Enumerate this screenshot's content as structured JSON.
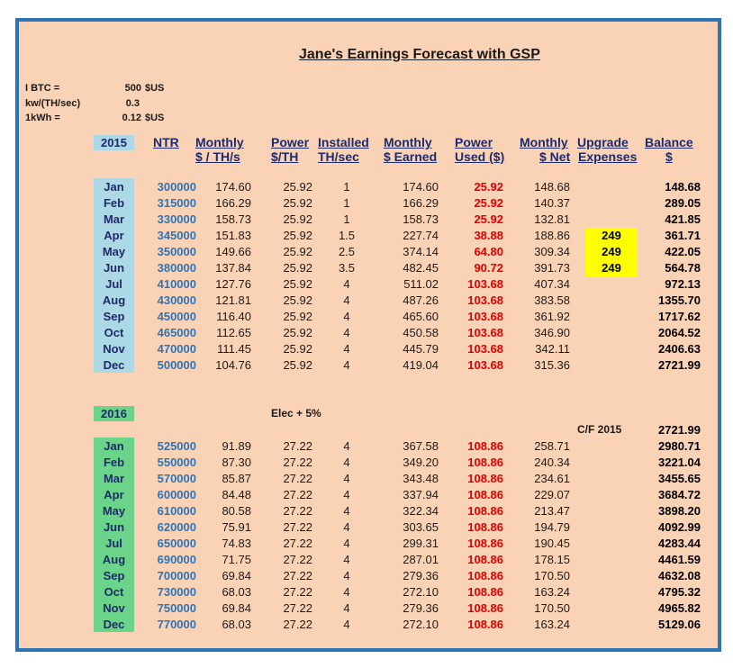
{
  "title": "Jane's Earnings Forecast with GSP",
  "params": [
    {
      "label": "I BTC =",
      "value": "500",
      "unit": "$US"
    },
    {
      "label": "kw/(TH/sec)",
      "value": "0.3",
      "unit": ""
    },
    {
      "label": "1kWh =",
      "value": "0.12",
      "unit": "$US"
    }
  ],
  "headers": {
    "ntr": "NTR",
    "monthly1": "Monthly",
    "monthly2": "$ / TH/s",
    "power1": "Power",
    "power2": "$/TH",
    "installed1": "Installed",
    "installed2": "TH/sec",
    "earned1": "Monthly",
    "earned2": "$ Earned",
    "used1": "Power",
    "used2": "Used ($)",
    "net1": "Monthly",
    "net2": "$ Net",
    "upg1": "Upgrade",
    "upg2": "Expenses",
    "bal1": "Balance",
    "bal2": "$"
  },
  "colors": {
    "y2015": "#add8e6",
    "y2016": "#6bd48a",
    "accent_red": "#e00000",
    "highlight": "#ffff00",
    "border": "#2e74b5",
    "background": "#fad3b7"
  },
  "year2015": {
    "label": "2015",
    "rows": [
      {
        "m": "Jan",
        "ntr": "300000",
        "mth": "174.60",
        "pwr": "25.92",
        "inst": "1",
        "earn": "174.60",
        "used": "25.92",
        "net": "148.68",
        "upg": "",
        "bal": "148.68"
      },
      {
        "m": "Feb",
        "ntr": "315000",
        "mth": "166.29",
        "pwr": "25.92",
        "inst": "1",
        "earn": "166.29",
        "used": "25.92",
        "net": "140.37",
        "upg": "",
        "bal": "289.05"
      },
      {
        "m": "Mar",
        "ntr": "330000",
        "mth": "158.73",
        "pwr": "25.92",
        "inst": "1",
        "earn": "158.73",
        "used": "25.92",
        "net": "132.81",
        "upg": "",
        "bal": "421.85"
      },
      {
        "m": "Apr",
        "ntr": "345000",
        "mth": "151.83",
        "pwr": "25.92",
        "inst": "1.5",
        "earn": "227.74",
        "used": "38.88",
        "net": "188.86",
        "upg": "249",
        "bal": "361.71"
      },
      {
        "m": "May",
        "ntr": "350000",
        "mth": "149.66",
        "pwr": "25.92",
        "inst": "2.5",
        "earn": "374.14",
        "used": "64.80",
        "net": "309.34",
        "upg": "249",
        "bal": "422.05"
      },
      {
        "m": "Jun",
        "ntr": "380000",
        "mth": "137.84",
        "pwr": "25.92",
        "inst": "3.5",
        "earn": "482.45",
        "used": "90.72",
        "net": "391.73",
        "upg": "249",
        "bal": "564.78"
      },
      {
        "m": "Jul",
        "ntr": "410000",
        "mth": "127.76",
        "pwr": "25.92",
        "inst": "4",
        "earn": "511.02",
        "used": "103.68",
        "net": "407.34",
        "upg": "",
        "bal": "972.13"
      },
      {
        "m": "Aug",
        "ntr": "430000",
        "mth": "121.81",
        "pwr": "25.92",
        "inst": "4",
        "earn": "487.26",
        "used": "103.68",
        "net": "383.58",
        "upg": "",
        "bal": "1355.70"
      },
      {
        "m": "Sep",
        "ntr": "450000",
        "mth": "116.40",
        "pwr": "25.92",
        "inst": "4",
        "earn": "465.60",
        "used": "103.68",
        "net": "361.92",
        "upg": "",
        "bal": "1717.62"
      },
      {
        "m": "Oct",
        "ntr": "465000",
        "mth": "112.65",
        "pwr": "25.92",
        "inst": "4",
        "earn": "450.58",
        "used": "103.68",
        "net": "346.90",
        "upg": "",
        "bal": "2064.52"
      },
      {
        "m": "Nov",
        "ntr": "470000",
        "mth": "111.45",
        "pwr": "25.92",
        "inst": "4",
        "earn": "445.79",
        "used": "103.68",
        "net": "342.11",
        "upg": "",
        "bal": "2406.63"
      },
      {
        "m": "Dec",
        "ntr": "500000",
        "mth": "104.76",
        "pwr": "25.92",
        "inst": "4",
        "earn": "419.04",
        "used": "103.68",
        "net": "315.36",
        "upg": "",
        "bal": "2721.99"
      }
    ]
  },
  "year2016": {
    "label": "2016",
    "note": "Elec + 5%",
    "cf_label": "C/F 2015",
    "cf_value": "2721.99",
    "rows": [
      {
        "m": "Jan",
        "ntr": "525000",
        "mth": "91.89",
        "pwr": "27.22",
        "inst": "4",
        "earn": "367.58",
        "used": "108.86",
        "net": "258.71",
        "bal": "2980.71"
      },
      {
        "m": "Feb",
        "ntr": "550000",
        "mth": "87.30",
        "pwr": "27.22",
        "inst": "4",
        "earn": "349.20",
        "used": "108.86",
        "net": "240.34",
        "bal": "3221.04"
      },
      {
        "m": "Mar",
        "ntr": "570000",
        "mth": "85.87",
        "pwr": "27.22",
        "inst": "4",
        "earn": "343.48",
        "used": "108.86",
        "net": "234.61",
        "bal": "3455.65"
      },
      {
        "m": "Apr",
        "ntr": "600000",
        "mth": "84.48",
        "pwr": "27.22",
        "inst": "4",
        "earn": "337.94",
        "used": "108.86",
        "net": "229.07",
        "bal": "3684.72"
      },
      {
        "m": "May",
        "ntr": "610000",
        "mth": "80.58",
        "pwr": "27.22",
        "inst": "4",
        "earn": "322.34",
        "used": "108.86",
        "net": "213.47",
        "bal": "3898.20"
      },
      {
        "m": "Jun",
        "ntr": "620000",
        "mth": "75.91",
        "pwr": "27.22",
        "inst": "4",
        "earn": "303.65",
        "used": "108.86",
        "net": "194.79",
        "bal": "4092.99"
      },
      {
        "m": "Jul",
        "ntr": "650000",
        "mth": "74.83",
        "pwr": "27.22",
        "inst": "4",
        "earn": "299.31",
        "used": "108.86",
        "net": "190.45",
        "bal": "4283.44"
      },
      {
        "m": "Aug",
        "ntr": "690000",
        "mth": "71.75",
        "pwr": "27.22",
        "inst": "4",
        "earn": "287.01",
        "used": "108.86",
        "net": "178.15",
        "bal": "4461.59"
      },
      {
        "m": "Sep",
        "ntr": "700000",
        "mth": "69.84",
        "pwr": "27.22",
        "inst": "4",
        "earn": "279.36",
        "used": "108.86",
        "net": "170.50",
        "bal": "4632.08"
      },
      {
        "m": "Oct",
        "ntr": "730000",
        "mth": "68.03",
        "pwr": "27.22",
        "inst": "4",
        "earn": "272.10",
        "used": "108.86",
        "net": "163.24",
        "bal": "4795.32"
      },
      {
        "m": "Nov",
        "ntr": "750000",
        "mth": "69.84",
        "pwr": "27.22",
        "inst": "4",
        "earn": "279.36",
        "used": "108.86",
        "net": "170.50",
        "bal": "4965.82"
      },
      {
        "m": "Dec",
        "ntr": "770000",
        "mth": "68.03",
        "pwr": "27.22",
        "inst": "4",
        "earn": "272.10",
        "used": "108.86",
        "net": "163.24",
        "bal": "5129.06"
      }
    ]
  }
}
